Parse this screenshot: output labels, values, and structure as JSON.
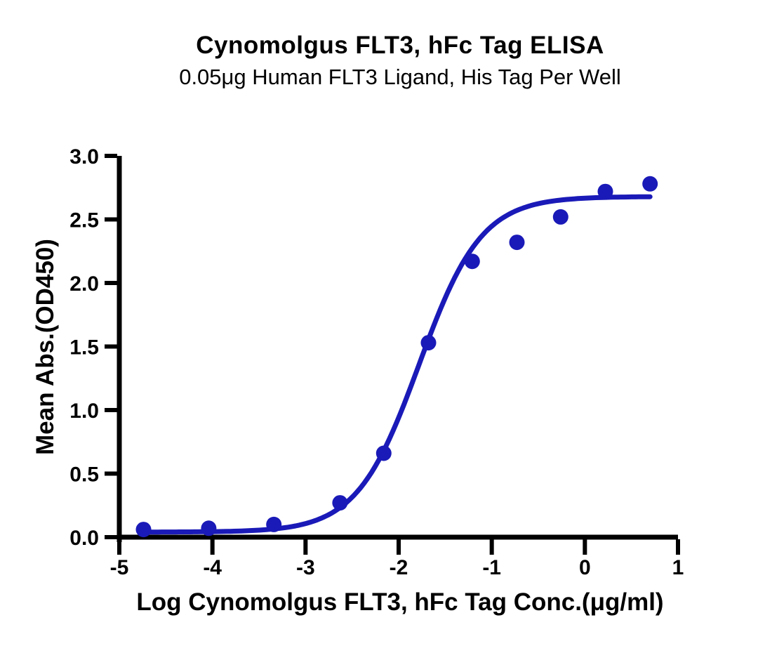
{
  "chart_data": {
    "type": "scatter",
    "title": "Cynomolgus FLT3, hFc Tag ELISA",
    "subtitle": "0.05μg Human FLT3 Ligand, His Tag Per Well",
    "xlabel": "Log Cynomolgus FLT3, hFc Tag Conc.(μg/ml)",
    "ylabel": "Mean Abs.(OD450)",
    "xlim": [
      -5,
      1
    ],
    "ylim": [
      0,
      3
    ],
    "x_ticks": [
      -5,
      -4,
      -3,
      -2,
      -1,
      0,
      1
    ],
    "x_tick_labels": [
      "-5",
      "-4",
      "-3",
      "-2",
      "-1",
      "0",
      "1"
    ],
    "y_ticks": [
      0,
      0.5,
      1,
      1.5,
      2,
      2.5,
      3
    ],
    "y_tick_labels": [
      "0.0",
      "0.5",
      "1.0",
      "1.5",
      "2.0",
      "2.5",
      "3.0"
    ],
    "grid": false,
    "legend": false,
    "points": [
      {
        "x": -4.74,
        "y": 0.06
      },
      {
        "x": -4.04,
        "y": 0.07
      },
      {
        "x": -3.34,
        "y": 0.1
      },
      {
        "x": -2.63,
        "y": 0.27
      },
      {
        "x": -2.16,
        "y": 0.66
      },
      {
        "x": -1.68,
        "y": 1.53
      },
      {
        "x": -1.21,
        "y": 2.17
      },
      {
        "x": -0.73,
        "y": 2.32
      },
      {
        "x": -0.26,
        "y": 2.52
      },
      {
        "x": 0.22,
        "y": 2.72
      },
      {
        "x": 0.7,
        "y": 2.78
      }
    ],
    "curve_fit": {
      "model": "4PL sigmoid",
      "bottom": 0.04,
      "top": 2.68,
      "log_ec50": -1.78,
      "hill": 1.3,
      "x_start": -4.74,
      "x_end": 0.7
    },
    "point_color": "#1a1ab8",
    "curve_color": "#1a1ab8",
    "axis_color": "#000000",
    "background_color": "#ffffff"
  }
}
